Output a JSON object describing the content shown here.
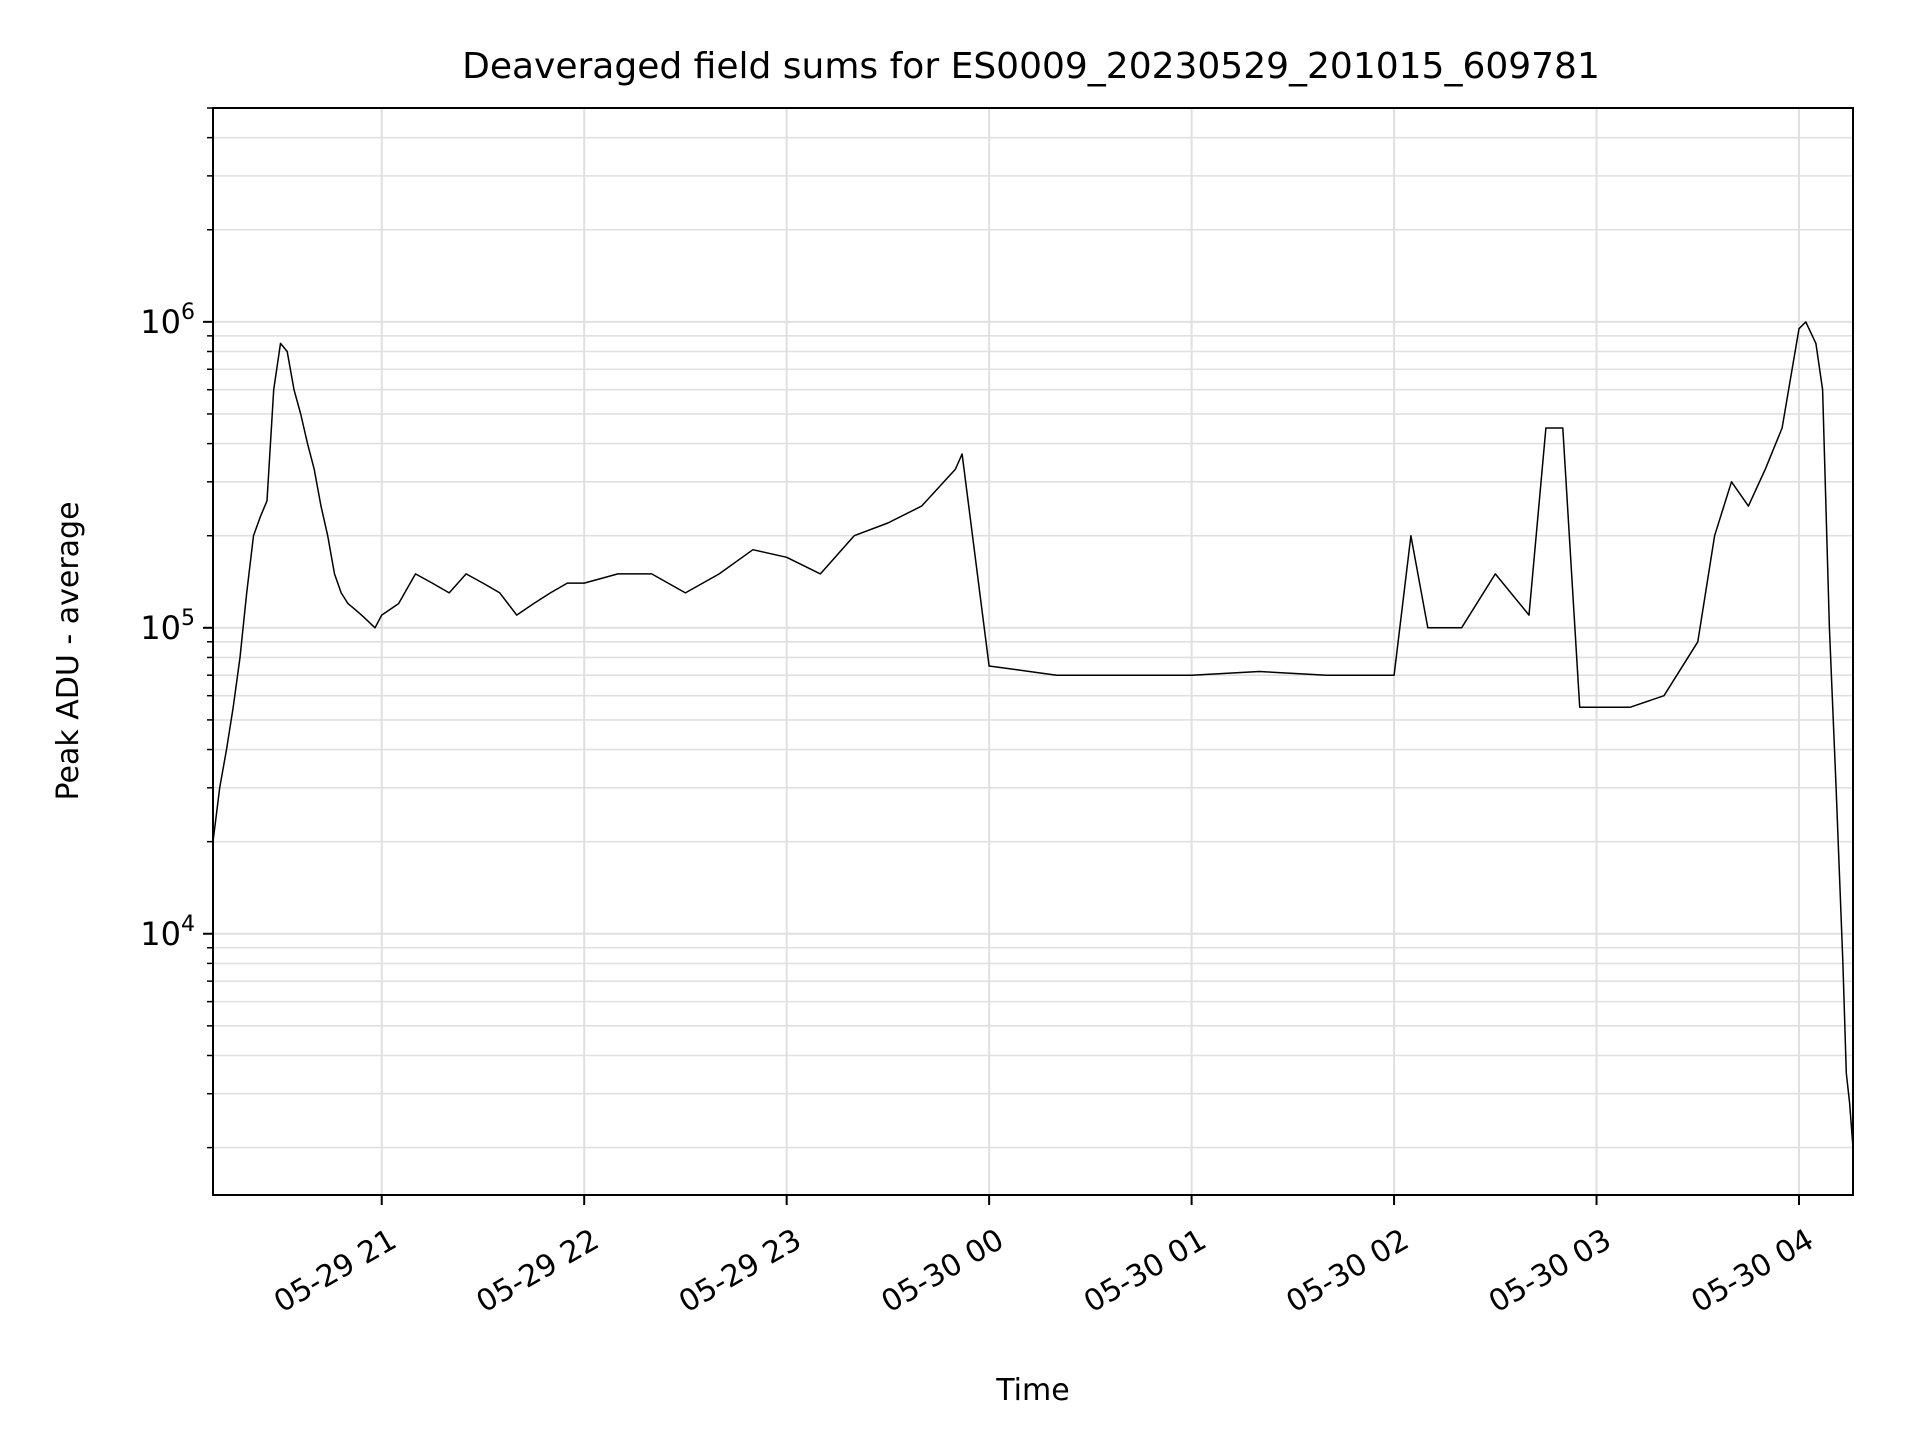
{
  "chart_data": {
    "type": "line",
    "title": "Deaveraged field sums for ES0009_20230529_201015_609781",
    "xlabel": "Time",
    "ylabel": "Peak ADU - average",
    "yscale": "log",
    "grid": true,
    "legend": "none",
    "colors": {
      "line": "#000000",
      "grid": "#e0e0e0",
      "axes": "#000000",
      "background": "#ffffff"
    },
    "xlim": [
      "2023-05-29 20:10",
      "2023-05-30 04:16"
    ],
    "ylim": [
      1400,
      5000000
    ],
    "xticks": [
      {
        "t": "2023-05-29 21:00",
        "label": "05-29 21"
      },
      {
        "t": "2023-05-29 22:00",
        "label": "05-29 22"
      },
      {
        "t": "2023-05-29 23:00",
        "label": "05-29 23"
      },
      {
        "t": "2023-05-30 00:00",
        "label": "05-30 00"
      },
      {
        "t": "2023-05-30 01:00",
        "label": "05-30 01"
      },
      {
        "t": "2023-05-30 02:00",
        "label": "05-30 02"
      },
      {
        "t": "2023-05-30 03:00",
        "label": "05-30 03"
      },
      {
        "t": "2023-05-30 04:00",
        "label": "05-30 04"
      }
    ],
    "yticks": [
      {
        "value": 10000,
        "base": "10",
        "exp": "4"
      },
      {
        "value": 100000,
        "base": "10",
        "exp": "5"
      },
      {
        "value": 1000000,
        "base": "10",
        "exp": "6"
      }
    ],
    "series": [
      {
        "x": [
          "2023-05-29 20:10",
          "2023-05-29 20:12",
          "2023-05-29 20:14",
          "2023-05-29 20:16",
          "2023-05-29 20:18",
          "2023-05-29 20:20",
          "2023-05-29 20:22",
          "2023-05-29 20:24",
          "2023-05-29 20:26",
          "2023-05-29 20:28",
          "2023-05-29 20:30",
          "2023-05-29 20:32",
          "2023-05-29 20:34",
          "2023-05-29 20:36",
          "2023-05-29 20:38",
          "2023-05-29 20:40",
          "2023-05-29 20:42",
          "2023-05-29 20:44",
          "2023-05-29 20:46",
          "2023-05-29 20:48",
          "2023-05-29 20:50",
          "2023-05-29 20:52",
          "2023-05-29 20:54",
          "2023-05-29 20:56",
          "2023-05-29 20:58",
          "2023-05-29 21:00",
          "2023-05-29 21:05",
          "2023-05-29 21:10",
          "2023-05-29 21:15",
          "2023-05-29 21:20",
          "2023-05-29 21:25",
          "2023-05-29 21:30",
          "2023-05-29 21:35",
          "2023-05-29 21:40",
          "2023-05-29 21:45",
          "2023-05-29 21:50",
          "2023-05-29 21:55",
          "2023-05-29 22:00",
          "2023-05-29 22:10",
          "2023-05-29 22:20",
          "2023-05-29 22:30",
          "2023-05-29 22:40",
          "2023-05-29 22:50",
          "2023-05-29 23:00",
          "2023-05-29 23:10",
          "2023-05-29 23:20",
          "2023-05-29 23:30",
          "2023-05-29 23:40",
          "2023-05-29 23:50",
          "2023-05-29 23:52",
          "2023-05-30 00:00",
          "2023-05-30 00:20",
          "2023-05-30 00:40",
          "2023-05-30 01:00",
          "2023-05-30 01:20",
          "2023-05-30 01:40",
          "2023-05-30 02:00",
          "2023-05-30 02:05",
          "2023-05-30 02:10",
          "2023-05-30 02:20",
          "2023-05-30 02:30",
          "2023-05-30 02:40",
          "2023-05-30 02:45",
          "2023-05-30 02:50",
          "2023-05-30 02:55",
          "2023-05-30 03:00",
          "2023-05-30 03:10",
          "2023-05-30 03:20",
          "2023-05-30 03:30",
          "2023-05-30 03:35",
          "2023-05-30 03:40",
          "2023-05-30 03:45",
          "2023-05-30 03:50",
          "2023-05-30 03:55",
          "2023-05-30 04:00",
          "2023-05-30 04:02",
          "2023-05-30 04:05",
          "2023-05-30 04:07",
          "2023-05-30 04:09",
          "2023-05-30 04:11",
          "2023-05-30 04:13",
          "2023-05-30 04:14",
          "2023-05-30 04:15",
          "2023-05-30 04:16"
        ],
        "y": [
          20000,
          30000,
          40000,
          55000,
          80000,
          130000,
          200000,
          230000,
          260000,
          600000,
          850000,
          800000,
          600000,
          500000,
          400000,
          330000,
          250000,
          200000,
          150000,
          130000,
          120000,
          115000,
          110000,
          105000,
          100000,
          110000,
          120000,
          150000,
          140000,
          130000,
          150000,
          140000,
          130000,
          110000,
          120000,
          130000,
          140000,
          140000,
          150000,
          150000,
          130000,
          150000,
          180000,
          170000,
          150000,
          200000,
          220000,
          250000,
          330000,
          370000,
          75000,
          70000,
          70000,
          70000,
          72000,
          70000,
          70000,
          200000,
          100000,
          100000,
          150000,
          110000,
          450000,
          450000,
          55000,
          55000,
          55000,
          60000,
          90000,
          200000,
          300000,
          250000,
          330000,
          450000,
          950000,
          1000000,
          850000,
          600000,
          100000,
          30000,
          8000,
          3500,
          2800,
          2000
        ]
      }
    ]
  }
}
